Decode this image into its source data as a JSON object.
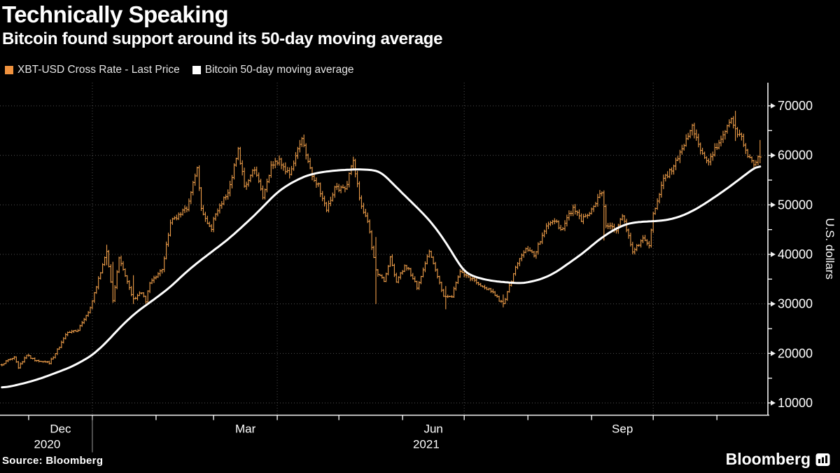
{
  "header": {
    "title": "Technically Speaking",
    "subtitle": "Bitcoin found support around its 50-day moving average"
  },
  "legend": [
    {
      "name": "price-series",
      "label": "XBT-USD Cross Rate - Last Price",
      "swatch_color": "#F0923E"
    },
    {
      "name": "ma-series",
      "label": "Bitcoin 50-day moving average",
      "swatch_color": "#FFFFFF"
    }
  ],
  "footer": {
    "source": "Source: Bloomberg",
    "logo_text": "Bloomberg",
    "logo_icon": "bar-chart-icon"
  },
  "colors": {
    "background": "#000000",
    "bars": "#EE9D49",
    "ma_line": "#FFFFFF",
    "grid": "#4f4f4f",
    "axis": "#f2f2f2",
    "year_divider": "#9a9a9a",
    "legend_text": "#e6e6e6"
  },
  "chart_data": {
    "type": "bar",
    "subtype": "daily OHLC bars with 50-day moving average line overlay",
    "title": "Technically Speaking",
    "subtitle": "Bitcoin found support around its 50-day moving average",
    "x_start_date": "2020-11-18",
    "x_end_date": "2021-11-22",
    "x_days": 369,
    "ylabel": "U.S. dollars",
    "ylim": [
      7500,
      74500
    ],
    "grid": "dotted",
    "legend_position": "top-left",
    "y_axis": {
      "label": "U.S. dollars",
      "major_ticks": [
        10000,
        20000,
        30000,
        40000,
        50000,
        60000,
        70000
      ],
      "minor_ticks": [
        15000,
        25000,
        35000,
        45000,
        55000,
        65000
      ]
    },
    "x_axis": {
      "month_tick_days": [
        13,
        44,
        75,
        103,
        134,
        164,
        195,
        225,
        256,
        287,
        317,
        348
      ],
      "month_labels": [
        {
          "label": "Dec",
          "day": 28.5
        },
        {
          "label": "Mar",
          "day": 118.5
        },
        {
          "label": "Jun",
          "day": 210
        },
        {
          "label": "Sep",
          "day": 302
        }
      ],
      "year_labels": [
        {
          "label": "2020",
          "day": 22
        },
        {
          "label": "2021",
          "day": 206.5
        }
      ],
      "year_divider_day": 44,
      "quarter_gridline_days": [
        44,
        134,
        225,
        317
      ]
    },
    "series": [
      {
        "name": "XBT-USD Cross Rate - Last Price",
        "type": "ohlc-bars",
        "color": "#EE9D49",
        "close_anchors": [
          [
            0,
            17800
          ],
          [
            3,
            18700
          ],
          [
            6,
            19150
          ],
          [
            8,
            17150
          ],
          [
            12,
            19650
          ],
          [
            16,
            18650
          ],
          [
            23,
            18050
          ],
          [
            28,
            21350
          ],
          [
            31,
            23900
          ],
          [
            37,
            24700
          ],
          [
            39,
            26250
          ],
          [
            43,
            29000
          ],
          [
            45,
            32200
          ],
          [
            51,
            40600
          ],
          [
            54,
            30900
          ],
          [
            57,
            39100
          ],
          [
            60,
            35800
          ],
          [
            64,
            30900
          ],
          [
            68,
            32300
          ],
          [
            70,
            30400
          ],
          [
            72,
            34300
          ],
          [
            78,
            36900
          ],
          [
            82,
            46400
          ],
          [
            88,
            48600
          ],
          [
            90,
            49200
          ],
          [
            95,
            57500
          ],
          [
            97,
            48900
          ],
          [
            100,
            46300
          ],
          [
            102,
            45100
          ],
          [
            104,
            48500
          ],
          [
            110,
            52400
          ],
          [
            115,
            61200
          ],
          [
            118,
            53900
          ],
          [
            123,
            57400
          ],
          [
            127,
            51300
          ],
          [
            131,
            57800
          ],
          [
            135,
            59000
          ],
          [
            140,
            56000
          ],
          [
            146,
            63500
          ],
          [
            151,
            56200
          ],
          [
            154,
            53800
          ],
          [
            158,
            49000
          ],
          [
            162,
            53600
          ],
          [
            167,
            53200
          ],
          [
            171,
            58800
          ],
          [
            175,
            49400
          ],
          [
            178,
            46700
          ],
          [
            182,
            36700
          ],
          [
            186,
            34700
          ],
          [
            189,
            39300
          ],
          [
            192,
            34600
          ],
          [
            196,
            37600
          ],
          [
            198,
            36800
          ],
          [
            202,
            33400
          ],
          [
            208,
            40500
          ],
          [
            212,
            35800
          ],
          [
            215,
            31600
          ],
          [
            219,
            31600
          ],
          [
            223,
            36400
          ],
          [
            228,
            35300
          ],
          [
            233,
            33800
          ],
          [
            238,
            32800
          ],
          [
            244,
            29800
          ],
          [
            247,
            33600
          ],
          [
            250,
            37200
          ],
          [
            255,
            41500
          ],
          [
            259,
            39700
          ],
          [
            263,
            43800
          ],
          [
            265,
            45600
          ],
          [
            269,
            47100
          ],
          [
            272,
            44700
          ],
          [
            278,
            49500
          ],
          [
            282,
            46800
          ],
          [
            287,
            48800
          ],
          [
            292,
            52700
          ],
          [
            294,
            46100
          ],
          [
            299,
            44900
          ],
          [
            302,
            47800
          ],
          [
            307,
            40700
          ],
          [
            312,
            43200
          ],
          [
            315,
            41500
          ],
          [
            317,
            48200
          ],
          [
            322,
            55300
          ],
          [
            327,
            57500
          ],
          [
            331,
            61600
          ],
          [
            336,
            66000
          ],
          [
            340,
            60900
          ],
          [
            343,
            58400
          ],
          [
            347,
            61300
          ],
          [
            350,
            62900
          ],
          [
            355,
            67500
          ],
          [
            357,
            64900
          ],
          [
            359,
            64400
          ],
          [
            363,
            60100
          ],
          [
            366,
            58100
          ],
          [
            369,
            60000
          ]
        ],
        "range_overrides": {
          "51": [
            37800,
            41950
          ],
          "54": [
            30200,
            38500
          ],
          "64": [
            30000,
            35800
          ],
          "182": [
            30000,
            43500
          ],
          "216": [
            28900,
            33600
          ],
          "244": [
            29300,
            31900
          ],
          "293": [
            42800,
            52900
          ],
          "357": [
            62900,
            69000
          ],
          "369": [
            58400,
            63100
          ]
        }
      },
      {
        "name": "Bitcoin 50-day moving average",
        "type": "line",
        "color": "#FFFFFF",
        "anchors": [
          [
            0,
            13000
          ],
          [
            6,
            13500
          ],
          [
            13,
            14200
          ],
          [
            20,
            15100
          ],
          [
            27,
            16200
          ],
          [
            34,
            17300
          ],
          [
            44,
            19600
          ],
          [
            51,
            22300
          ],
          [
            58,
            25500
          ],
          [
            65,
            28200
          ],
          [
            75,
            31200
          ],
          [
            82,
            33400
          ],
          [
            89,
            36200
          ],
          [
            96,
            38600
          ],
          [
            103,
            40800
          ],
          [
            110,
            43000
          ],
          [
            117,
            45600
          ],
          [
            124,
            48300
          ],
          [
            134,
            52600
          ],
          [
            141,
            54500
          ],
          [
            148,
            55900
          ],
          [
            155,
            56600
          ],
          [
            164,
            57000
          ],
          [
            174,
            57200
          ],
          [
            184,
            56900
          ],
          [
            195,
            52300
          ],
          [
            202,
            49500
          ],
          [
            209,
            46500
          ],
          [
            216,
            42500
          ],
          [
            225,
            36300
          ],
          [
            232,
            35200
          ],
          [
            239,
            34600
          ],
          [
            253,
            34100
          ],
          [
            262,
            34900
          ],
          [
            269,
            36200
          ],
          [
            283,
            40300
          ],
          [
            290,
            42800
          ],
          [
            297,
            44800
          ],
          [
            304,
            46200
          ],
          [
            311,
            46600
          ],
          [
            318,
            46700
          ],
          [
            325,
            47000
          ],
          [
            332,
            47900
          ],
          [
            339,
            49400
          ],
          [
            346,
            51300
          ],
          [
            353,
            53300
          ],
          [
            360,
            55500
          ],
          [
            366,
            57400
          ],
          [
            369,
            58300
          ]
        ]
      }
    ]
  }
}
